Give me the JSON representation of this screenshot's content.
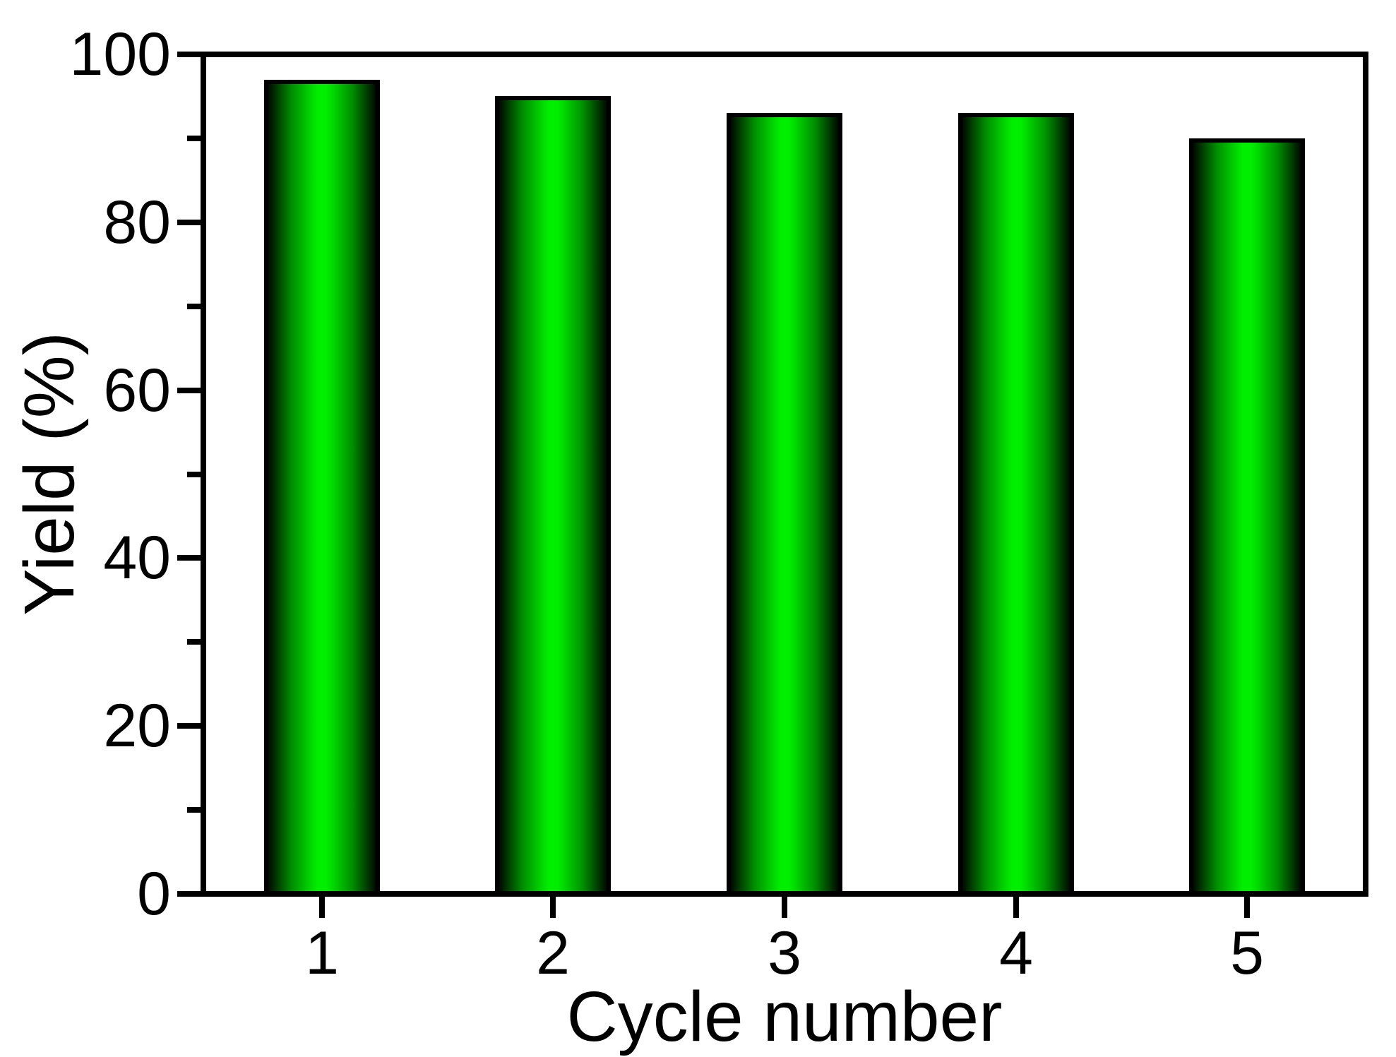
{
  "figure": {
    "background_color": "#ffffff",
    "text_color": "#000000",
    "axis_color": "#000000"
  },
  "chart_data": {
    "type": "bar",
    "title": "",
    "categories": [
      "1",
      "2",
      "3",
      "4",
      "5"
    ],
    "values": [
      97,
      95,
      93,
      93,
      90
    ],
    "xlabel": "Cycle number",
    "ylabel": "Yield (%)",
    "ylim": [
      0,
      100
    ],
    "x_range": [
      0.5,
      5.5
    ],
    "y_major_ticks": [
      0,
      20,
      40,
      60,
      80,
      100
    ],
    "y_major_tick_labels": [
      "0",
      "20",
      "40",
      "60",
      "80",
      "100"
    ],
    "y_minor_ticks": [
      10,
      30,
      50,
      70,
      90
    ],
    "bar_width_units": 0.5,
    "grid": false,
    "legend": false,
    "frame": "full-box",
    "bar_fill_bright": "#00ee00",
    "bar_fill_dark": "#000a00",
    "bar_edge_color": "#000000"
  }
}
